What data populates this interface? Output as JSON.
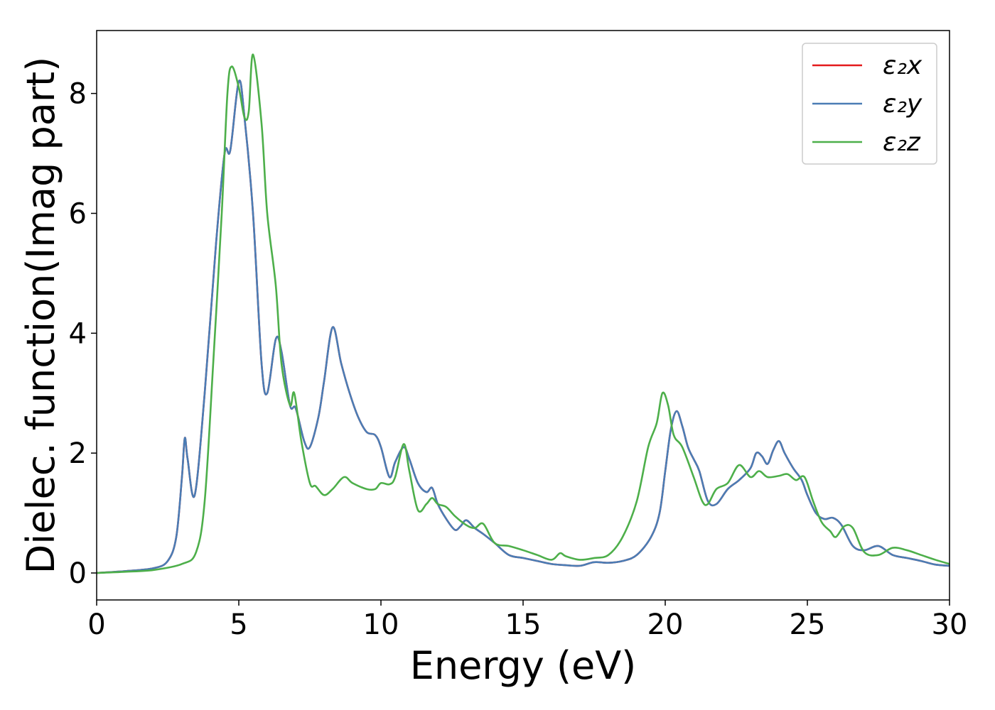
{
  "chart_data": {
    "type": "line",
    "title": "",
    "xlabel": "Energy (eV)",
    "ylabel": "Dielec. function(Imag part)",
    "xlim": [
      0,
      30
    ],
    "ylim": [
      -0.45,
      9.05
    ],
    "xticks": [
      0,
      5,
      10,
      15,
      20,
      25,
      30
    ],
    "yticks": [
      0,
      2,
      4,
      6,
      8
    ],
    "grid": false,
    "legend_position": "top-right",
    "series": [
      {
        "name": "ε₂x",
        "color": "#e41a1c",
        "x": [
          0,
          1,
          2,
          2.5,
          2.8,
          3.0,
          3.1,
          3.2,
          3.45,
          3.8,
          4.2,
          4.5,
          4.7,
          5.0,
          5.2,
          5.5,
          5.8,
          6.0,
          6.3,
          6.5,
          6.8,
          7.0,
          7.3,
          7.5,
          7.8,
          8.0,
          8.3,
          8.6,
          8.9,
          9.2,
          9.5,
          9.8,
          10.0,
          10.3,
          10.5,
          10.8,
          11.0,
          11.3,
          11.6,
          11.8,
          12.0,
          12.3,
          12.6,
          12.8,
          13.0,
          13.3,
          13.6,
          14.0,
          14.5,
          15.0,
          15.5,
          16.0,
          16.5,
          17.0,
          17.5,
          18.0,
          18.5,
          19.0,
          19.5,
          19.8,
          20.0,
          20.2,
          20.4,
          20.6,
          20.8,
          21.0,
          21.2,
          21.5,
          21.8,
          22.2,
          22.6,
          23.0,
          23.2,
          23.4,
          23.6,
          23.8,
          24.0,
          24.2,
          24.5,
          24.8,
          25.0,
          25.3,
          25.6,
          25.9,
          26.2,
          26.6,
          27.0,
          27.5,
          28.0,
          28.5,
          29.0,
          29.5,
          30.0
        ],
        "y": [
          0,
          0.03,
          0.08,
          0.2,
          0.6,
          1.6,
          2.25,
          1.9,
          1.3,
          3.0,
          5.5,
          7.0,
          7.05,
          8.2,
          7.6,
          6.0,
          3.5,
          3.0,
          3.9,
          3.7,
          2.8,
          2.75,
          2.2,
          2.1,
          2.6,
          3.2,
          4.1,
          3.5,
          3.0,
          2.6,
          2.35,
          2.3,
          2.1,
          1.6,
          1.85,
          2.1,
          1.9,
          1.5,
          1.35,
          1.42,
          1.15,
          0.9,
          0.72,
          0.78,
          0.88,
          0.75,
          0.65,
          0.5,
          0.3,
          0.25,
          0.2,
          0.15,
          0.13,
          0.12,
          0.18,
          0.17,
          0.2,
          0.3,
          0.6,
          1.0,
          1.7,
          2.4,
          2.7,
          2.45,
          2.1,
          1.9,
          1.7,
          1.2,
          1.15,
          1.4,
          1.55,
          1.75,
          2.0,
          1.95,
          1.82,
          2.05,
          2.2,
          2.0,
          1.75,
          1.55,
          1.3,
          1.0,
          0.9,
          0.92,
          0.8,
          0.45,
          0.38,
          0.45,
          0.3,
          0.25,
          0.2,
          0.14,
          0.12
        ]
      },
      {
        "name": "ε₂y",
        "color": "#4a7db5",
        "x": [
          0,
          1,
          2,
          2.5,
          2.8,
          3.0,
          3.1,
          3.2,
          3.45,
          3.8,
          4.2,
          4.5,
          4.7,
          5.0,
          5.2,
          5.5,
          5.8,
          6.0,
          6.3,
          6.5,
          6.8,
          7.0,
          7.3,
          7.5,
          7.8,
          8.0,
          8.3,
          8.6,
          8.9,
          9.2,
          9.5,
          9.8,
          10.0,
          10.3,
          10.5,
          10.8,
          11.0,
          11.3,
          11.6,
          11.8,
          12.0,
          12.3,
          12.6,
          12.8,
          13.0,
          13.3,
          13.6,
          14.0,
          14.5,
          15.0,
          15.5,
          16.0,
          16.5,
          17.0,
          17.5,
          18.0,
          18.5,
          19.0,
          19.5,
          19.8,
          20.0,
          20.2,
          20.4,
          20.6,
          20.8,
          21.0,
          21.2,
          21.5,
          21.8,
          22.2,
          22.6,
          23.0,
          23.2,
          23.4,
          23.6,
          23.8,
          24.0,
          24.2,
          24.5,
          24.8,
          25.0,
          25.3,
          25.6,
          25.9,
          26.2,
          26.6,
          27.0,
          27.5,
          28.0,
          28.5,
          29.0,
          29.5,
          30.0
        ],
        "y": [
          0,
          0.03,
          0.08,
          0.2,
          0.6,
          1.6,
          2.25,
          1.9,
          1.3,
          3.0,
          5.5,
          7.0,
          7.05,
          8.2,
          7.6,
          6.0,
          3.5,
          3.0,
          3.9,
          3.7,
          2.8,
          2.75,
          2.2,
          2.1,
          2.6,
          3.2,
          4.1,
          3.5,
          3.0,
          2.6,
          2.35,
          2.3,
          2.1,
          1.6,
          1.85,
          2.1,
          1.9,
          1.5,
          1.35,
          1.42,
          1.15,
          0.9,
          0.72,
          0.78,
          0.88,
          0.75,
          0.65,
          0.5,
          0.3,
          0.25,
          0.2,
          0.15,
          0.13,
          0.12,
          0.18,
          0.17,
          0.2,
          0.3,
          0.6,
          1.0,
          1.7,
          2.4,
          2.7,
          2.45,
          2.1,
          1.9,
          1.7,
          1.2,
          1.15,
          1.4,
          1.55,
          1.75,
          2.0,
          1.95,
          1.82,
          2.05,
          2.2,
          2.0,
          1.75,
          1.55,
          1.3,
          1.0,
          0.9,
          0.92,
          0.8,
          0.45,
          0.38,
          0.45,
          0.3,
          0.25,
          0.2,
          0.14,
          0.12
        ]
      },
      {
        "name": "ε₂z",
        "color": "#4daf4a",
        "x": [
          0,
          1,
          2,
          3,
          3.5,
          3.8,
          4.1,
          4.4,
          4.6,
          4.75,
          5.0,
          5.2,
          5.35,
          5.5,
          5.8,
          6.0,
          6.3,
          6.5,
          6.8,
          6.95,
          7.2,
          7.5,
          7.7,
          8.0,
          8.3,
          8.7,
          9.0,
          9.5,
          9.8,
          10.0,
          10.3,
          10.5,
          10.8,
          11.0,
          11.3,
          11.6,
          11.8,
          12.0,
          12.3,
          12.6,
          13.0,
          13.3,
          13.6,
          14.0,
          14.5,
          15.0,
          15.5,
          16.0,
          16.3,
          16.5,
          17.0,
          17.5,
          18.0,
          18.5,
          19.0,
          19.4,
          19.7,
          19.9,
          20.1,
          20.3,
          20.6,
          21.0,
          21.3,
          21.5,
          21.8,
          22.2,
          22.6,
          23.0,
          23.3,
          23.6,
          24.0,
          24.3,
          24.6,
          24.9,
          25.2,
          25.5,
          25.8,
          26.0,
          26.3,
          26.6,
          27.0,
          27.5,
          28.0,
          28.5,
          29.0,
          29.5,
          30.0
        ],
        "y": [
          0,
          0.02,
          0.05,
          0.15,
          0.35,
          1.2,
          3.5,
          6.0,
          8.0,
          8.45,
          8.1,
          7.6,
          7.7,
          8.65,
          7.5,
          6.0,
          4.8,
          3.5,
          2.8,
          3.0,
          2.2,
          1.5,
          1.45,
          1.3,
          1.4,
          1.6,
          1.5,
          1.4,
          1.4,
          1.5,
          1.48,
          1.6,
          2.15,
          1.7,
          1.05,
          1.15,
          1.25,
          1.15,
          1.1,
          0.95,
          0.8,
          0.75,
          0.82,
          0.5,
          0.45,
          0.38,
          0.3,
          0.22,
          0.33,
          0.28,
          0.22,
          0.25,
          0.3,
          0.6,
          1.2,
          2.1,
          2.5,
          3.0,
          2.8,
          2.3,
          2.1,
          1.6,
          1.2,
          1.15,
          1.4,
          1.5,
          1.8,
          1.6,
          1.7,
          1.6,
          1.62,
          1.65,
          1.55,
          1.6,
          1.2,
          0.85,
          0.7,
          0.6,
          0.78,
          0.75,
          0.35,
          0.3,
          0.42,
          0.38,
          0.3,
          0.22,
          0.15
        ]
      }
    ]
  }
}
